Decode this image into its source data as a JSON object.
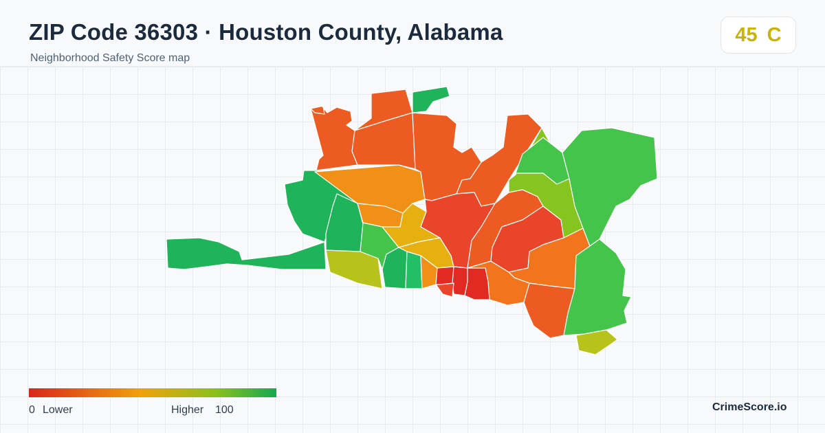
{
  "header": {
    "title": "ZIP Code 36303 · Houston County, Alabama",
    "subtitle": "Neighborhood Safety Score map"
  },
  "score": {
    "value": "45",
    "grade": "C",
    "color": "#c9b40e"
  },
  "legend": {
    "low_value": "0",
    "low_label": "Lower",
    "high_label": "Higher",
    "high_value": "100",
    "colors": [
      "#d9261c",
      "#f0a10c",
      "#8cc11d",
      "#18a850"
    ]
  },
  "brand": "CrimeScore.io",
  "palette": {
    "red": "#e12a22",
    "red_orange": "#e8452a",
    "dark_orange": "#ec5c22",
    "orange": "#f2741c",
    "amber": "#f09016",
    "gold": "#e6b010",
    "yellow_green": "#b7c21a",
    "lime": "#86c51f",
    "light_green": "#44c44a",
    "green": "#1fb35a",
    "teal_green": "#22bf67"
  }
}
